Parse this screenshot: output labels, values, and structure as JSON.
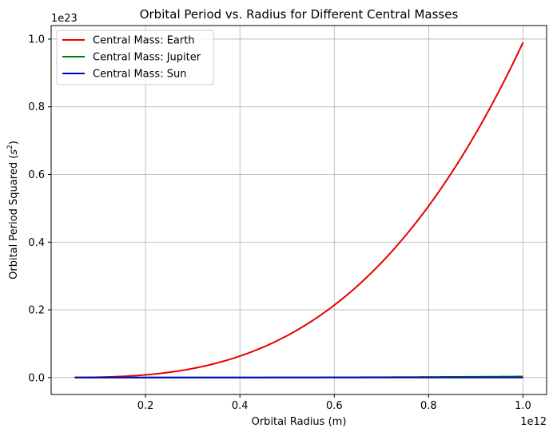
{
  "chart_data": {
    "type": "line",
    "title": "Orbital Period vs. Radius for Different Central Masses",
    "xlabel": "Orbital Radius (m)",
    "ylabel_prefix": "Orbital Period Squared (",
    "ylabel_unit": "s",
    "ylabel_exp": "2",
    "ylabel_suffix": ")",
    "x_offset_text": "1e12",
    "y_offset_text": "1e23",
    "xlim": [
      0.0,
      1050000000000.0
    ],
    "ylim": [
      -5e+21,
      1.04e+23
    ],
    "x_ticks": [
      200000000000.0,
      400000000000.0,
      600000000000.0,
      800000000000.0,
      1000000000000.0
    ],
    "x_tick_labels": [
      "0.2",
      "0.4",
      "0.6",
      "0.8",
      "1.0"
    ],
    "y_ticks": [
      0.0,
      2e+22,
      4e+22,
      6e+22,
      8e+22,
      1e+23
    ],
    "y_tick_labels": [
      "0.0",
      "0.2",
      "0.4",
      "0.6",
      "0.8",
      "1.0"
    ],
    "grid": true,
    "legend_position": "top-left",
    "x_range": [
      50000000000.0,
      1000000000000.0
    ],
    "series": [
      {
        "name": "Central Mass: Earth",
        "color": "#e60000",
        "coefficient": 9.9e+22,
        "exponent": 3
      },
      {
        "name": "Central Mass: Jupiter",
        "color": "#008000",
        "coefficient": 3.1e+20,
        "exponent": 3
      },
      {
        "name": "Central Mass: Sun",
        "color": "#0000cc",
        "coefficient": 3e+16,
        "exponent": 3
      }
    ]
  }
}
